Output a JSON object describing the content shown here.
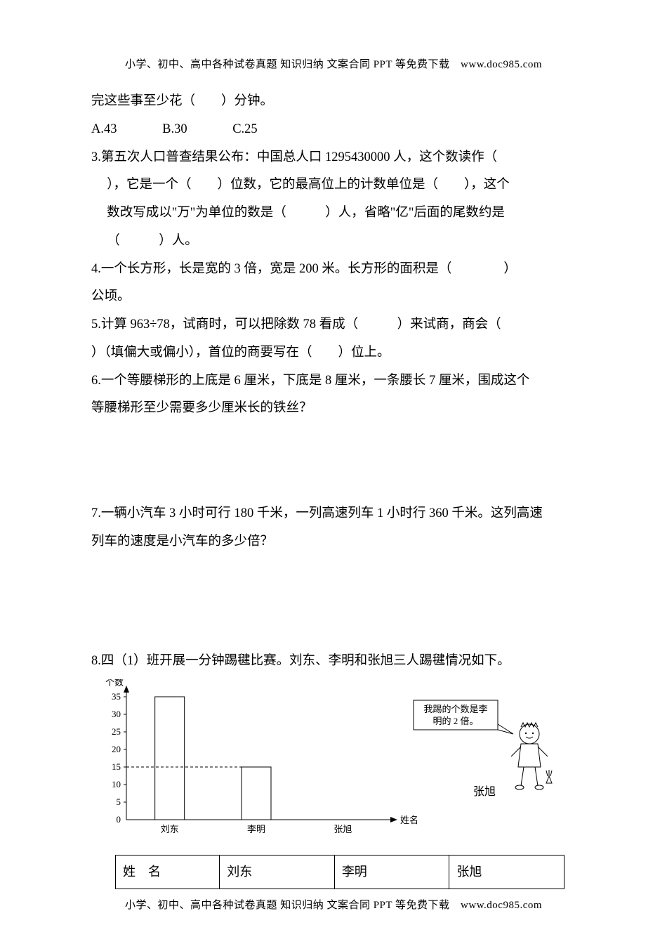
{
  "header": "小学、初中、高中各种试卷真题 知识归纳 文案合同 PPT 等免费下载　www.doc985.com",
  "footer": "小学、初中、高中各种试卷真题 知识归纳 文案合同 PPT 等免费下载　www.doc985.com",
  "q2_cont": "完这些事至少花（　　）分钟。",
  "q2_choices": {
    "a": "A.43",
    "b": "B.30",
    "c": "C.25"
  },
  "q3_l1": "3.第五次人口普查结果公布：中国总人口 1295430000 人，这个数读作（",
  "q3_l2": "），它是一个（　　）位数，它的最高位上的计数单位是（　　），这个",
  "q3_l3": "数改写成以\"万\"为单位的数是（　　　）人，省略\"亿\"后面的尾数约是",
  "q3_l4": "（　　　）人。",
  "q4_l1": "4.一个长方形，长是宽的 3 倍，宽是 200 米。长方形的面积是（　　　　）",
  "q4_l2": "公顷。",
  "q5_l1": "5.计算 963÷78，试商时，可以把除数 78 看成（　　　）来试商，商会（",
  "q5_l2": "）（填偏大或偏小），首位的商要写在（　　）位上。",
  "q6_l1": "6.一个等腰梯形的上底是 6 厘米，下底是 8 厘米，一条腰长 7 厘米，围成这个",
  "q6_l2": "等腰梯形至少需要多少厘米长的铁丝？",
  "q7_l1": "7.一辆小汽车 3 小时可行 180 千米，一列高速列车 1 小时行 360 千米。这列高速",
  "q7_l2": "列车的速度是小汽车的多少倍？",
  "q8_l1": "8.四（1）班开展一分钟踢毽比赛。刘东、李明和张旭三人踢毽情况如下。",
  "chart": {
    "type": "bar",
    "y_label": "个数",
    "x_label": "姓名",
    "y_ticks": [
      0,
      5,
      10,
      15,
      20,
      25,
      30,
      35
    ],
    "categories": [
      "刘东",
      "李明",
      "张旭"
    ],
    "values": [
      35,
      15,
      null
    ],
    "bar_color": "#ffffff",
    "bar_border": "#000000",
    "axis_color": "#000000",
    "grid_on": false,
    "dash_y": 15,
    "dash_color": "#000000",
    "speech_text_1": "我踢的个数是李",
    "speech_text_2": "明的 2 倍。",
    "speaker_name": "张旭",
    "label_fontsize": 13,
    "tick_fontsize": 13
  },
  "table": {
    "col1_header": "姓　名",
    "cols": [
      "刘东",
      "李明",
      "张旭"
    ]
  }
}
